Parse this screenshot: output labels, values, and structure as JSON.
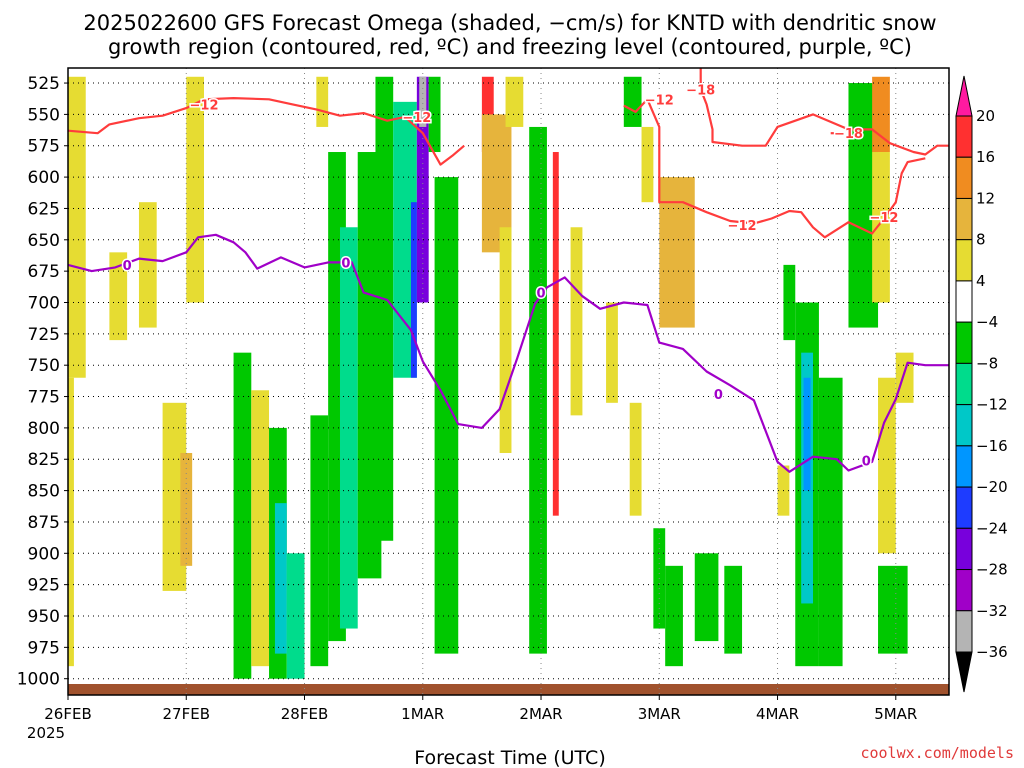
{
  "chart_data": {
    "type": "heatmap",
    "title_line1": "2025022600 GFS Forecast Omega (shaded, −cm/s) for KNTD with dendritic snow",
    "title_line2": "growth region (contoured, red, ºC) and freezing level (contoured, purple, ºC)",
    "xlabel": "Forecast Time (UTC)",
    "x_year": "2025",
    "x_ticks": [
      {
        "t": 0,
        "label": "26FEB"
      },
      {
        "t": 1,
        "label": "27FEB"
      },
      {
        "t": 2,
        "label": "28FEB"
      },
      {
        "t": 3,
        "label": "1MAR"
      },
      {
        "t": 4,
        "label": "2MAR"
      },
      {
        "t": 5,
        "label": "3MAR"
      },
      {
        "t": 6,
        "label": "4MAR"
      },
      {
        "t": 7,
        "label": "5MAR"
      }
    ],
    "xlim": [
      0,
      7.45
    ],
    "y_ticks": [
      525,
      550,
      575,
      600,
      625,
      650,
      675,
      700,
      725,
      750,
      775,
      800,
      825,
      850,
      875,
      900,
      925,
      950,
      975,
      1000
    ],
    "ylim": [
      1013,
      513
    ],
    "grid": true,
    "colorbar": {
      "labels": [
        "20",
        "16",
        "12",
        "8",
        "4",
        "−4",
        "−8",
        "−12",
        "−16",
        "−20",
        "−24",
        "−28",
        "−32",
        "−36"
      ],
      "bins": [
        {
          "color": "#ff1aa0"
        },
        {
          "color": "#ff3030"
        },
        {
          "color": "#f08c20"
        },
        {
          "color": "#e6b43c"
        },
        {
          "color": "#e6dc32"
        },
        {
          "color": "#ffffff"
        },
        {
          "color": "#00c800"
        },
        {
          "color": "#00dc8c"
        },
        {
          "color": "#00c8c8"
        },
        {
          "color": "#0096ff"
        },
        {
          "color": "#1e3cff"
        },
        {
          "color": "#7800dc"
        },
        {
          "color": "#a000c8"
        },
        {
          "color": "#b4b4b4"
        },
        {
          "color": "#000000"
        }
      ]
    },
    "shading": [
      {
        "x0": 0.0,
        "x1": 0.15,
        "p0": 520,
        "p1": 760,
        "color": "#e6dc32"
      },
      {
        "x0": 0.0,
        "x1": 0.05,
        "p0": 760,
        "p1": 990,
        "color": "#e6dc32"
      },
      {
        "x0": 0.35,
        "x1": 0.5,
        "p0": 660,
        "p1": 730,
        "color": "#e6dc32"
      },
      {
        "x0": 0.6,
        "x1": 0.75,
        "p0": 620,
        "p1": 720,
        "color": "#e6dc32"
      },
      {
        "x0": 0.8,
        "x1": 1.0,
        "p0": 780,
        "p1": 930,
        "color": "#e6dc32"
      },
      {
        "x0": 0.95,
        "x1": 1.05,
        "p0": 820,
        "p1": 910,
        "color": "#e6b43c"
      },
      {
        "x0": 1.0,
        "x1": 1.15,
        "p0": 520,
        "p1": 700,
        "color": "#e6dc32"
      },
      {
        "x0": 1.4,
        "x1": 1.55,
        "p0": 740,
        "p1": 1000,
        "color": "#00c800"
      },
      {
        "x0": 1.55,
        "x1": 1.7,
        "p0": 770,
        "p1": 990,
        "color": "#e6dc32"
      },
      {
        "x0": 1.7,
        "x1": 1.85,
        "p0": 800,
        "p1": 1000,
        "color": "#00c800"
      },
      {
        "x0": 1.75,
        "x1": 1.85,
        "p0": 860,
        "p1": 980,
        "color": "#00c8c8"
      },
      {
        "x0": 1.85,
        "x1": 2.0,
        "p0": 900,
        "p1": 1000,
        "color": "#00dc8c"
      },
      {
        "x0": 2.05,
        "x1": 2.2,
        "p0": 790,
        "p1": 990,
        "color": "#00c800"
      },
      {
        "x0": 2.1,
        "x1": 2.2,
        "p0": 520,
        "p1": 560,
        "color": "#e6dc32"
      },
      {
        "x0": 2.2,
        "x1": 2.35,
        "p0": 580,
        "p1": 970,
        "color": "#00c800"
      },
      {
        "x0": 2.3,
        "x1": 2.45,
        "p0": 640,
        "p1": 960,
        "color": "#00dc8c"
      },
      {
        "x0": 2.45,
        "x1": 2.65,
        "p0": 580,
        "p1": 920,
        "color": "#00c800"
      },
      {
        "x0": 2.6,
        "x1": 2.75,
        "p0": 520,
        "p1": 890,
        "color": "#00c800"
      },
      {
        "x0": 2.75,
        "x1": 2.95,
        "p0": 540,
        "p1": 760,
        "color": "#00dc8c"
      },
      {
        "x0": 2.9,
        "x1": 2.95,
        "p0": 620,
        "p1": 760,
        "color": "#1e3cff"
      },
      {
        "x0": 2.95,
        "x1": 3.05,
        "p0": 520,
        "p1": 700,
        "color": "#7800dc"
      },
      {
        "x0": 2.97,
        "x1": 3.03,
        "p0": 520,
        "p1": 560,
        "color": "#b4b4b4"
      },
      {
        "x0": 3.05,
        "x1": 3.15,
        "p0": 520,
        "p1": 580,
        "color": "#00c800"
      },
      {
        "x0": 3.1,
        "x1": 3.3,
        "p0": 600,
        "p1": 980,
        "color": "#00c800"
      },
      {
        "x0": 3.5,
        "x1": 3.6,
        "p0": 520,
        "p1": 580,
        "color": "#ff3030"
      },
      {
        "x0": 3.5,
        "x1": 3.75,
        "p0": 550,
        "p1": 660,
        "color": "#e6b43c"
      },
      {
        "x0": 3.7,
        "x1": 3.85,
        "p0": 520,
        "p1": 560,
        "color": "#e6dc32"
      },
      {
        "x0": 3.65,
        "x1": 3.75,
        "p0": 640,
        "p1": 820,
        "color": "#e6dc32"
      },
      {
        "x0": 3.9,
        "x1": 4.05,
        "p0": 560,
        "p1": 980,
        "color": "#00c800"
      },
      {
        "x0": 4.1,
        "x1": 4.15,
        "p0": 580,
        "p1": 870,
        "color": "#ff3030"
      },
      {
        "x0": 4.25,
        "x1": 4.35,
        "p0": 640,
        "p1": 790,
        "color": "#e6dc32"
      },
      {
        "x0": 4.55,
        "x1": 4.65,
        "p0": 700,
        "p1": 780,
        "color": "#e6dc32"
      },
      {
        "x0": 4.7,
        "x1": 4.85,
        "p0": 520,
        "p1": 560,
        "color": "#00c800"
      },
      {
        "x0": 4.75,
        "x1": 4.85,
        "p0": 780,
        "p1": 870,
        "color": "#e6dc32"
      },
      {
        "x0": 4.85,
        "x1": 4.95,
        "p0": 560,
        "p1": 620,
        "color": "#e6dc32"
      },
      {
        "x0": 5.0,
        "x1": 5.3,
        "p0": 600,
        "p1": 720,
        "color": "#e6b43c"
      },
      {
        "x0": 4.95,
        "x1": 5.05,
        "p0": 880,
        "p1": 960,
        "color": "#00c800"
      },
      {
        "x0": 5.05,
        "x1": 5.2,
        "p0": 910,
        "p1": 990,
        "color": "#00c800"
      },
      {
        "x0": 5.3,
        "x1": 5.5,
        "p0": 900,
        "p1": 970,
        "color": "#00c800"
      },
      {
        "x0": 5.55,
        "x1": 5.7,
        "p0": 910,
        "p1": 980,
        "color": "#00c800"
      },
      {
        "x0": 6.0,
        "x1": 6.1,
        "p0": 830,
        "p1": 870,
        "color": "#e6dc32"
      },
      {
        "x0": 6.05,
        "x1": 6.15,
        "p0": 670,
        "p1": 730,
        "color": "#00c800"
      },
      {
        "x0": 6.15,
        "x1": 6.35,
        "p0": 700,
        "p1": 990,
        "color": "#00c800"
      },
      {
        "x0": 6.2,
        "x1": 6.3,
        "p0": 740,
        "p1": 940,
        "color": "#00c8c8"
      },
      {
        "x0": 6.22,
        "x1": 6.28,
        "p0": 760,
        "p1": 850,
        "color": "#0096ff"
      },
      {
        "x0": 6.35,
        "x1": 6.55,
        "p0": 760,
        "p1": 990,
        "color": "#00c800"
      },
      {
        "x0": 6.6,
        "x1": 6.85,
        "p0": 525,
        "p1": 720,
        "color": "#00c800"
      },
      {
        "x0": 6.8,
        "x1": 6.95,
        "p0": 520,
        "p1": 580,
        "color": "#f08c20"
      },
      {
        "x0": 6.8,
        "x1": 6.95,
        "p0": 580,
        "p1": 700,
        "color": "#e6dc32"
      },
      {
        "x0": 6.85,
        "x1": 7.1,
        "p0": 910,
        "p1": 980,
        "color": "#00c800"
      },
      {
        "x0": 6.85,
        "x1": 7.0,
        "p0": 760,
        "p1": 900,
        "color": "#e6dc32"
      },
      {
        "x0": 7.0,
        "x1": 7.15,
        "p0": 740,
        "p1": 780,
        "color": "#e6dc32"
      }
    ],
    "terrain_color": "#a0522d",
    "contours": {
      "dgz_color": "#ff3c3c",
      "freezing_color": "#a000c8",
      "freezing_level": {
        "label": "0",
        "label_points": [
          [
            0.5,
            670
          ],
          [
            2.35,
            668
          ],
          [
            4.0,
            692
          ],
          [
            5.5,
            773
          ],
          [
            6.75,
            826
          ]
        ],
        "points": [
          [
            0.0,
            670
          ],
          [
            0.2,
            675
          ],
          [
            0.4,
            672
          ],
          [
            0.6,
            665
          ],
          [
            0.8,
            667
          ],
          [
            1.0,
            660
          ],
          [
            1.1,
            648
          ],
          [
            1.25,
            646
          ],
          [
            1.4,
            652
          ],
          [
            1.5,
            660
          ],
          [
            1.6,
            673
          ],
          [
            1.8,
            664
          ],
          [
            2.0,
            672
          ],
          [
            2.2,
            668
          ],
          [
            2.4,
            668
          ],
          [
            2.5,
            692
          ],
          [
            2.7,
            698
          ],
          [
            2.9,
            722
          ],
          [
            3.0,
            747
          ],
          [
            3.15,
            770
          ],
          [
            3.3,
            797
          ],
          [
            3.5,
            800
          ],
          [
            3.65,
            785
          ],
          [
            3.8,
            744
          ],
          [
            3.95,
            701
          ],
          [
            4.05,
            688
          ],
          [
            4.2,
            680
          ],
          [
            4.35,
            695
          ],
          [
            4.5,
            705
          ],
          [
            4.7,
            700
          ],
          [
            4.9,
            702
          ],
          [
            5.0,
            732
          ],
          [
            5.2,
            737
          ],
          [
            5.4,
            755
          ],
          [
            5.6,
            766
          ],
          [
            5.8,
            778
          ],
          [
            6.0,
            827
          ],
          [
            6.1,
            835
          ],
          [
            6.3,
            823
          ],
          [
            6.5,
            825
          ],
          [
            6.6,
            834
          ],
          [
            6.8,
            827
          ],
          [
            6.9,
            796
          ],
          [
            7.0,
            777
          ],
          [
            7.1,
            748
          ],
          [
            7.25,
            750
          ],
          [
            7.45,
            750
          ]
        ]
      },
      "dgz_lines": [
        {
          "label": "−12",
          "label_points": [
            [
              1.15,
              542
            ],
            [
              2.95,
              552
            ]
          ],
          "points": [
            [
              0.0,
              563
            ],
            [
              0.25,
              565
            ],
            [
              0.35,
              558
            ],
            [
              0.6,
              553
            ],
            [
              0.8,
              551
            ],
            [
              1.0,
              545
            ],
            [
              1.15,
              538
            ],
            [
              1.4,
              537
            ],
            [
              1.7,
              538
            ],
            [
              1.9,
              542
            ],
            [
              2.1,
              546
            ],
            [
              2.3,
              551
            ],
            [
              2.5,
              549
            ],
            [
              2.7,
              555
            ],
            [
              2.85,
              552
            ],
            [
              3.0,
              565
            ],
            [
              3.15,
              590
            ],
            [
              3.25,
              583
            ],
            [
              3.35,
              575
            ]
          ]
        },
        {
          "label": "−12",
          "label_points": [
            [
              5.0,
              538
            ]
          ],
          "points": [
            [
              4.7,
              543
            ],
            [
              4.8,
              548
            ],
            [
              4.9,
              538
            ],
            [
              5.0,
              560
            ],
            [
              5.0,
              600
            ]
          ]
        },
        {
          "label": "−18",
          "label_points": [
            [
              5.35,
              530
            ]
          ],
          "points": [
            [
              5.35,
              513
            ],
            [
              5.35,
              530
            ],
            [
              5.4,
              542
            ],
            [
              5.45,
              562
            ],
            [
              5.45,
              572
            ],
            [
              5.7,
              575
            ],
            [
              5.9,
              575
            ],
            [
              6.0,
              560
            ],
            [
              6.3,
              550
            ],
            [
              6.6,
              562
            ],
            [
              6.8,
              562
            ],
            [
              6.95,
              573
            ],
            [
              7.15,
              580
            ],
            [
              7.25,
              582
            ],
            [
              7.35,
              575
            ],
            [
              7.45,
              575
            ]
          ]
        },
        {
          "label": "−18",
          "label_points": [
            [
              6.6,
              565
            ]
          ],
          "points": [
            [
              6.45,
              565
            ],
            [
              6.55,
              565
            ]
          ]
        },
        {
          "label": "−12",
          "label_points": [
            [
              5.7,
              638
            ],
            [
              6.9,
              632
            ]
          ],
          "points": [
            [
              5.0,
              600
            ],
            [
              5.0,
              620
            ],
            [
              5.2,
              620
            ],
            [
              5.4,
              628
            ],
            [
              5.6,
              635
            ],
            [
              5.8,
              637
            ],
            [
              5.95,
              633
            ],
            [
              6.1,
              627
            ],
            [
              6.2,
              628
            ],
            [
              6.3,
              640
            ],
            [
              6.4,
              648
            ],
            [
              6.6,
              636
            ],
            [
              6.8,
              645
            ],
            [
              6.9,
              633
            ],
            [
              7.0,
              620
            ],
            [
              7.05,
              597
            ],
            [
              7.1,
              588
            ],
            [
              7.25,
              585
            ]
          ]
        }
      ]
    }
  },
  "credit": "coolwx.com/models"
}
